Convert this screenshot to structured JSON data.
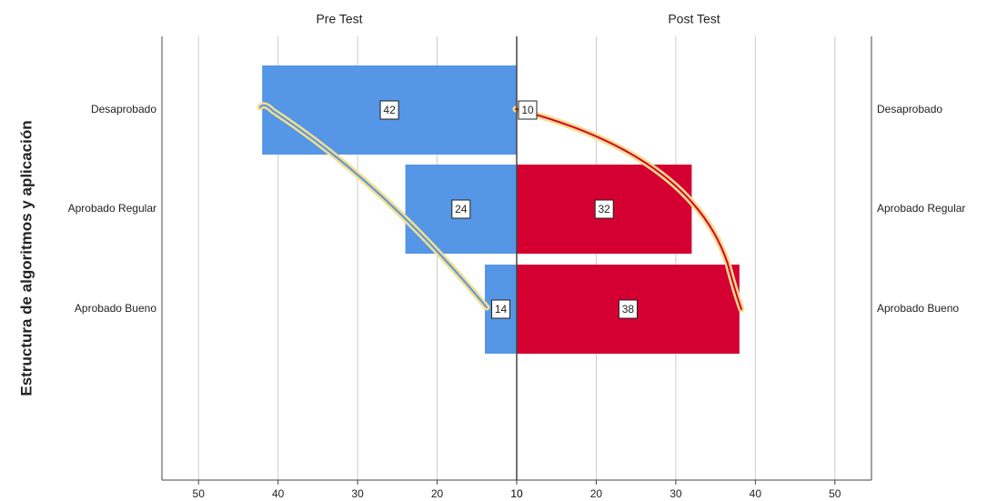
{
  "chart_data": {
    "type": "pyramid",
    "y_label": "Estructura de algoritmos y aplicación",
    "categories": [
      "Desaprobado",
      "Aprobado Regular",
      "Aprobado Bueno"
    ],
    "series": [
      {
        "name": "Pre Test",
        "color": "#5596e6",
        "values": [
          42,
          24,
          14
        ]
      },
      {
        "name": "Post Test",
        "color": "#d50032",
        "values": [
          10,
          32,
          38
        ]
      }
    ],
    "xlim": [
      10,
      54.6
    ],
    "xticks": [
      10,
      20,
      30,
      40,
      50
    ],
    "grid": true
  }
}
